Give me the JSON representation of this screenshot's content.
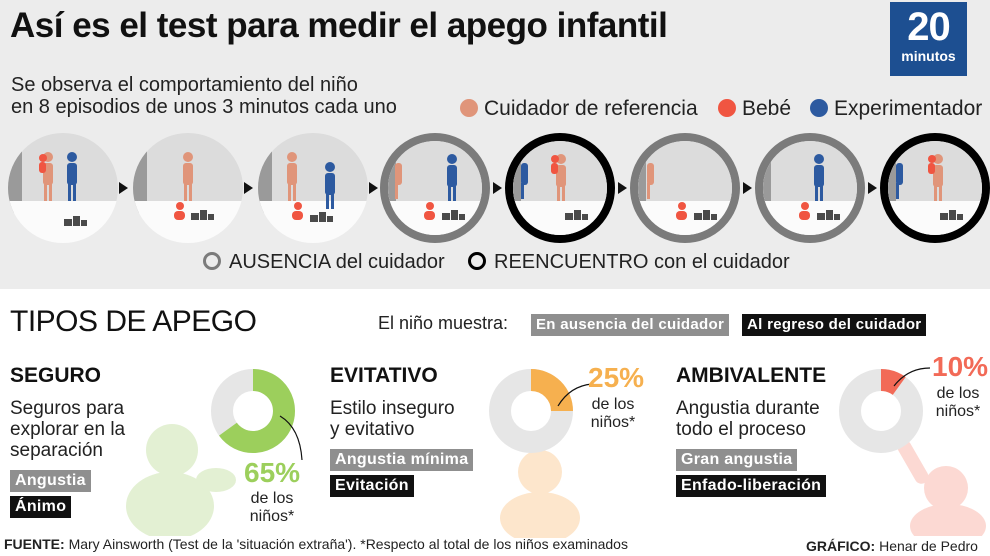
{
  "header": {
    "title": "Así es el test para medir el apego infantil",
    "logo_number": "20",
    "logo_word": "minutos"
  },
  "intro": {
    "line1": "Se observa el comportamiento del niño",
    "line2": "en 8 episodios de unos 3 minutos cada uno"
  },
  "legend": [
    {
      "label": "Cuidador de referencia",
      "color": "#e0957a"
    },
    {
      "label": "Bebé",
      "color": "#f05541"
    },
    {
      "label": "Experimentador",
      "color": "#2d5aa0"
    }
  ],
  "episodes": [
    "plain",
    "plain",
    "plain",
    "absence",
    "reunion",
    "absence",
    "absence",
    "reunion"
  ],
  "ring_key": {
    "absence": "AUSENCIA del cuidador",
    "reunion": "REENCUENTRO con el cuidador"
  },
  "section": {
    "title": "TIPOS DE APEGO",
    "shows_label": "El niño muestra:",
    "tag_absence": "En ausencia del cuidador",
    "tag_return": "Al regreso del cuidador"
  },
  "types": [
    {
      "name": "SEGURO",
      "desc1": "Seguros para",
      "desc2": "explorar en la",
      "desc3": "separación",
      "absence_tag": "Angustia",
      "return_tag": "Ánimo",
      "percent": "65%",
      "percent_value": 65,
      "pct_line1": "de los",
      "pct_line2": "niños*",
      "color": "#9ccf5c"
    },
    {
      "name": "EVITATIVO",
      "desc1": "Estilo inseguro",
      "desc2": "y evitativo",
      "absence_tag": "Angustia mínima",
      "return_tag": "Evitación",
      "percent": "25%",
      "percent_value": 25,
      "pct_line1": "de los",
      "pct_line2": "niños*",
      "color": "#f6b04f"
    },
    {
      "name": "AMBIVALENTE",
      "desc1": "Angustia durante",
      "desc2": "todo el proceso",
      "absence_tag": "Gran angustia",
      "return_tag": "Enfado-liberación",
      "percent": "10%",
      "percent_value": 10,
      "pct_line1": "de los",
      "pct_line2": "niños*",
      "color": "#f26a57"
    }
  ],
  "footer": {
    "source_label": "FUENTE:",
    "source_text": "Mary Ainsworth (Test de la 'situación extraña'). *Respecto al total de los niños examinados",
    "credit_label": "GRÁFICO:",
    "credit_text": "Henar de Pedro"
  },
  "colors": {
    "ring_gray": "#7b7b7b",
    "donut_track": "#e6e6e6",
    "tag_gray": "#8f8f8f",
    "tag_black": "#111111"
  }
}
